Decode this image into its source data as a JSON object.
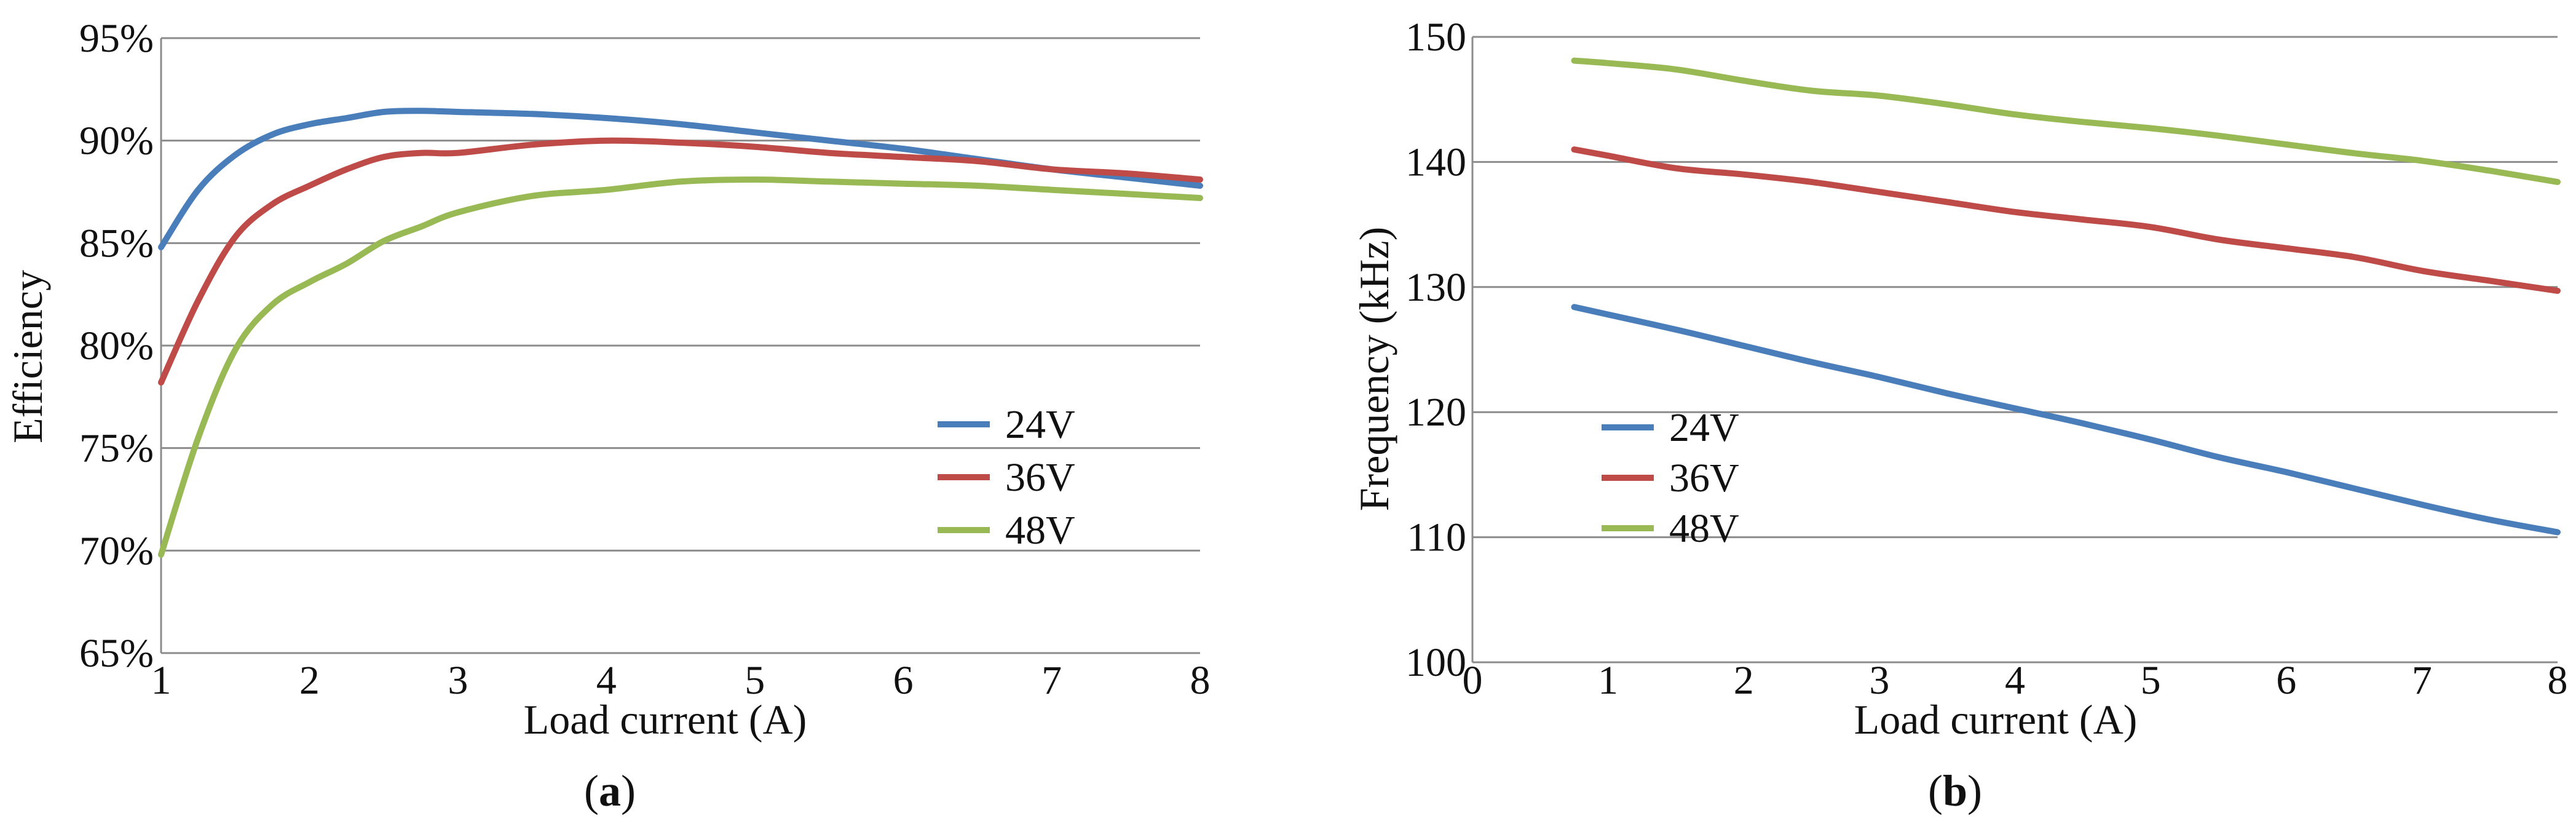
{
  "chart_data": [
    {
      "type": "line",
      "panel_label": "(a)",
      "panel_letter": "a",
      "title": "",
      "xlabel": "Load current (A)",
      "ylabel": "Efficiency",
      "xlim": [
        1,
        8
      ],
      "ylim": [
        65,
        95
      ],
      "x_ticks": [
        1,
        2,
        3,
        4,
        5,
        6,
        7,
        8
      ],
      "y_ticks": [
        65,
        70,
        75,
        80,
        85,
        90,
        95
      ],
      "x_tick_labels": [
        "1",
        "2",
        "3",
        "4",
        "5",
        "6",
        "7",
        "8"
      ],
      "y_tick_labels": [
        "65%",
        "70%",
        "75%",
        "80%",
        "85%",
        "90%",
        "95%"
      ],
      "grid": true,
      "legend_position": "bottom-right",
      "series": [
        {
          "name": "24V",
          "color": "#4a7ebb",
          "x": [
            1,
            1.25,
            1.5,
            1.75,
            2,
            2.25,
            2.5,
            2.75,
            3,
            3.5,
            4,
            4.5,
            5,
            5.5,
            6,
            6.5,
            7,
            7.5,
            8
          ],
          "y": [
            84.8,
            87.6,
            89.3,
            90.3,
            90.8,
            91.1,
            91.4,
            91.45,
            91.4,
            91.3,
            91.1,
            90.8,
            90.4,
            90.0,
            89.6,
            89.1,
            88.6,
            88.2,
            87.8
          ]
        },
        {
          "name": "36V",
          "color": "#be4b48",
          "x": [
            1,
            1.25,
            1.5,
            1.75,
            2,
            2.25,
            2.5,
            2.75,
            3,
            3.5,
            4,
            4.5,
            5,
            5.5,
            6,
            6.5,
            7,
            7.5,
            8
          ],
          "y": [
            78.2,
            82.2,
            85.3,
            86.9,
            87.8,
            88.6,
            89.2,
            89.4,
            89.4,
            89.8,
            90.0,
            89.9,
            89.7,
            89.4,
            89.2,
            89.0,
            88.6,
            88.4,
            88.1
          ]
        },
        {
          "name": "48V",
          "color": "#98b954",
          "x": [
            1,
            1.25,
            1.5,
            1.75,
            2,
            2.25,
            2.5,
            2.75,
            3,
            3.5,
            4,
            4.5,
            5,
            5.5,
            6,
            6.5,
            7,
            7.5,
            8
          ],
          "y": [
            69.8,
            75.5,
            79.8,
            82.0,
            83.1,
            84.0,
            85.1,
            85.8,
            86.5,
            87.3,
            87.6,
            88.0,
            88.1,
            88.0,
            87.9,
            87.8,
            87.6,
            87.4,
            87.2
          ]
        }
      ]
    },
    {
      "type": "line",
      "panel_label": "(b)",
      "panel_letter": "b",
      "title": "",
      "xlabel": "Load current (A)",
      "ylabel": "Frequency (kHz)",
      "xlim": [
        0,
        8
      ],
      "ylim": [
        100,
        150
      ],
      "x_ticks": [
        0,
        1,
        2,
        3,
        4,
        5,
        6,
        7,
        8
      ],
      "y_ticks": [
        100,
        110,
        120,
        130,
        140,
        150
      ],
      "x_tick_labels": [
        "0",
        "1",
        "2",
        "3",
        "4",
        "5",
        "6",
        "7",
        "8"
      ],
      "y_tick_labels": [
        "100",
        "110",
        "120",
        "130",
        "140",
        "150"
      ],
      "grid": true,
      "legend_position": "center-left",
      "series": [
        {
          "name": "24V",
          "color": "#4a7ebb",
          "x": [
            0.75,
            1,
            1.5,
            2,
            2.5,
            3,
            3.5,
            4,
            4.5,
            5,
            5.5,
            6,
            6.5,
            7,
            7.5,
            8
          ],
          "y": [
            128.4,
            127.8,
            126.6,
            125.3,
            124.0,
            122.8,
            121.5,
            120.3,
            119.1,
            117.8,
            116.4,
            115.2,
            113.9,
            112.6,
            111.4,
            110.4
          ]
        },
        {
          "name": "36V",
          "color": "#be4b48",
          "x": [
            0.75,
            1,
            1.5,
            2,
            2.5,
            3,
            3.5,
            4,
            4.5,
            5,
            5.5,
            6,
            6.5,
            7,
            7.5,
            8
          ],
          "y": [
            141.0,
            140.5,
            139.5,
            139.0,
            138.4,
            137.6,
            136.8,
            136.0,
            135.4,
            134.8,
            133.8,
            133.1,
            132.4,
            131.3,
            130.5,
            129.7
          ]
        },
        {
          "name": "48V",
          "color": "#98b954",
          "x": [
            0.75,
            1,
            1.5,
            2,
            2.5,
            3,
            3.5,
            4,
            4.5,
            5,
            5.5,
            6,
            6.5,
            7,
            7.5,
            8
          ],
          "y": [
            148.1,
            147.9,
            147.4,
            146.5,
            145.7,
            145.3,
            144.6,
            143.8,
            143.2,
            142.7,
            142.1,
            141.4,
            140.7,
            140.1,
            139.3,
            138.4
          ]
        }
      ]
    }
  ]
}
